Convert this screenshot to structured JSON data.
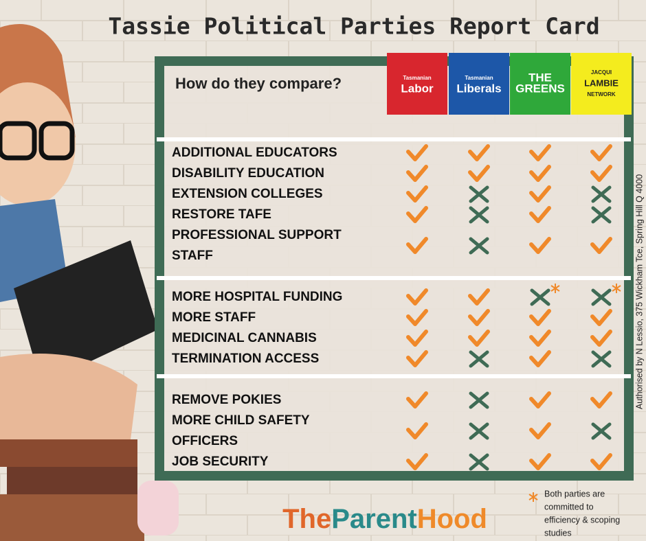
{
  "title": "Tassie Political Parties Report Card",
  "subtitle": "How do they compare?",
  "parties": [
    {
      "lines": [
        "Tasmanian",
        "Labor"
      ],
      "color": "#d8262e"
    },
    {
      "lines": [
        "Tasmanian",
        "Liberals"
      ],
      "color": "#1d57a8"
    },
    {
      "lines": [
        "THE",
        "GREENS"
      ],
      "color": "#2fa83a"
    },
    {
      "lines": [
        "JACQUI",
        "LAMBIE",
        "NETWORK"
      ],
      "color": "#f4ec1e"
    }
  ],
  "sections": [
    {
      "rows": [
        {
          "label": [
            "ADDITIONAL EDUCATORS"
          ],
          "support": [
            true,
            true,
            true,
            true
          ]
        },
        {
          "label": [
            "DISABILITY EDUCATION"
          ],
          "support": [
            true,
            true,
            true,
            true
          ]
        },
        {
          "label": [
            "EXTENSION COLLEGES"
          ],
          "support": [
            true,
            false,
            true,
            false
          ]
        },
        {
          "label": [
            "RESTORE TAFE"
          ],
          "support": [
            true,
            false,
            true,
            false
          ]
        },
        {
          "label": [
            "PROFESSIONAL SUPPORT",
            "STAFF"
          ],
          "support": [
            true,
            false,
            true,
            true
          ]
        }
      ]
    },
    {
      "rows": [
        {
          "label": [
            "MORE HOSPITAL FUNDING"
          ],
          "support": [
            true,
            true,
            false,
            false
          ],
          "asterisk": [
            false,
            false,
            true,
            true
          ]
        },
        {
          "label": [
            "MORE STAFF"
          ],
          "support": [
            true,
            true,
            true,
            true
          ]
        },
        {
          "label": [
            "MEDICINAL CANNABIS"
          ],
          "support": [
            true,
            true,
            true,
            true
          ]
        },
        {
          "label": [
            "TERMINATION ACCESS"
          ],
          "support": [
            true,
            false,
            true,
            false
          ]
        }
      ]
    },
    {
      "rows": [
        {
          "label": [
            "REMOVE POKIES"
          ],
          "support": [
            true,
            false,
            true,
            true
          ]
        },
        {
          "label": [
            "MORE CHILD SAFETY",
            "OFFICERS"
          ],
          "support": [
            true,
            false,
            true,
            false
          ]
        },
        {
          "label": [
            "JOB SECURITY"
          ],
          "support": [
            true,
            false,
            true,
            true
          ]
        }
      ]
    }
  ],
  "footnote": [
    "Both parties are",
    "committed to",
    "efficiency & scoping",
    "studies"
  ],
  "authorisation": "Authorised by N Lessio, 375 Wickham Tce, Spring Hill Q 4000",
  "logo": [
    {
      "text": "The",
      "color": "#e0662a"
    },
    {
      "text": "Parent",
      "color": "#2a8a8a"
    },
    {
      "text": "Hood",
      "color": "#ef8a2a"
    }
  ]
}
